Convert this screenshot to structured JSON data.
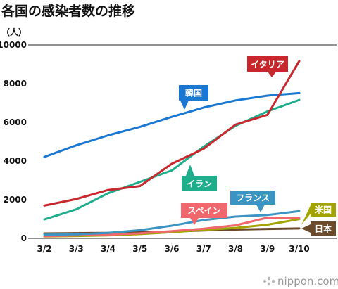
{
  "chart_data": {
    "type": "line",
    "title": "各国の感染者数の推移",
    "ylabel": "（人）",
    "xlabel": "",
    "x": [
      "3/2",
      "3/3",
      "3/4",
      "3/5",
      "3/6",
      "3/7",
      "3/8",
      "3/9",
      "3/10"
    ],
    "ylim": [
      0,
      10000
    ],
    "yticks": [
      0,
      2000,
      4000,
      6000,
      8000,
      10000
    ],
    "grid": false,
    "series": [
      {
        "name": "韓国",
        "color": "#1a78d2",
        "values": [
          4212,
          4812,
          5328,
          5766,
          6284,
          6767,
          7134,
          7382,
          7513
        ]
      },
      {
        "name": "イタリア",
        "color": "#c8282d",
        "values": [
          1694,
          2036,
          2502,
          2706,
          3858,
          4636,
          5883,
          6390,
          9172
        ]
      },
      {
        "name": "イラン",
        "color": "#1fae8c",
        "values": [
          978,
          1501,
          2336,
          2922,
          3513,
          4747,
          5823,
          6566,
          7161
        ]
      },
      {
        "name": "フランス",
        "color": "#3b94c2",
        "values": [
          191,
          212,
          285,
          423,
          653,
          949,
          1126,
          1209,
          1412
        ]
      },
      {
        "name": "スペイン",
        "color": "#f0686e",
        "values": [
          114,
          151,
          198,
          257,
          374,
          500,
          673,
          1073,
          1073
        ]
      },
      {
        "name": "米国",
        "color": "#a3a300",
        "values": [
          100,
          124,
          158,
          221,
          319,
          435,
          541,
          704,
          994
        ]
      },
      {
        "name": "日本",
        "color": "#6b4a2b",
        "values": [
          254,
          268,
          284,
          317,
          349,
          408,
          455,
          488,
          514
        ]
      }
    ]
  },
  "footer": {
    "brand": "nippon.com"
  }
}
